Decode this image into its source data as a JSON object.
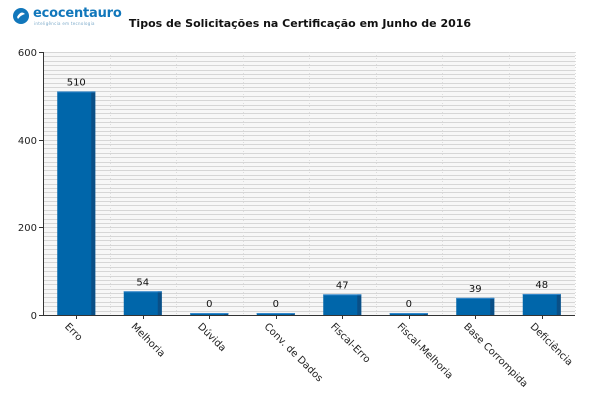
{
  "logo": {
    "name": "ecocentauro",
    "tagline": "inteligência em tecnologia",
    "color": "#1177bb"
  },
  "chart_data": {
    "type": "bar",
    "title": "Tipos de Solicitações na Certificação em Junho de 2016",
    "xlabel": "",
    "ylabel": "",
    "categories": [
      "Erro",
      "Melhoria",
      "Dúvida",
      "Conv. de Dados",
      "Fiscal-Erro",
      "Fiscal-Melhoria",
      "Base Corrompida",
      "Deficiência"
    ],
    "values": [
      510,
      54,
      0,
      0,
      47,
      0,
      39,
      48
    ],
    "ylim": [
      0,
      600
    ],
    "yticks": [
      0,
      200,
      400,
      600
    ],
    "data_labels": true,
    "grid": true,
    "bar_color": "#0066aa",
    "bar_side_color": "#0a4f86"
  }
}
